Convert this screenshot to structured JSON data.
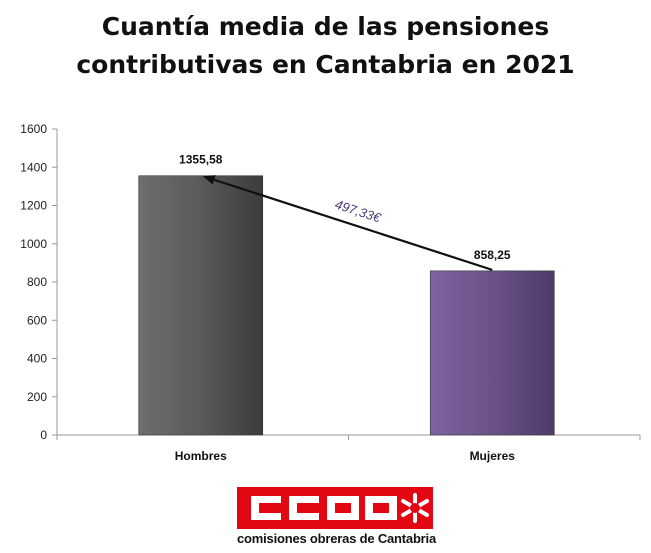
{
  "header": {
    "title_line1": "Cuantía media de las pensiones",
    "title_line2": "contributivas en Cantabria en 2021"
  },
  "chart_data": {
    "type": "bar",
    "categories": [
      "Hombres",
      "Mujeres"
    ],
    "values": [
      1355.58,
      858.25
    ],
    "value_labels": [
      "1355,58",
      "858,25"
    ],
    "colors": [
      "#5a5a5a",
      "#6a5288"
    ],
    "ylim": [
      0,
      1600
    ],
    "yticks": [
      0,
      200,
      400,
      600,
      800,
      1000,
      1200,
      1400,
      1600
    ],
    "annotation": {
      "text": "497,33€",
      "arrow_from": "Mujeres",
      "arrow_to": "Hombres"
    },
    "grid": false,
    "legend": "none"
  },
  "logo": {
    "text": "CCOO",
    "caption": "comisiones obreras de Cantabria",
    "color": "#e30613"
  }
}
